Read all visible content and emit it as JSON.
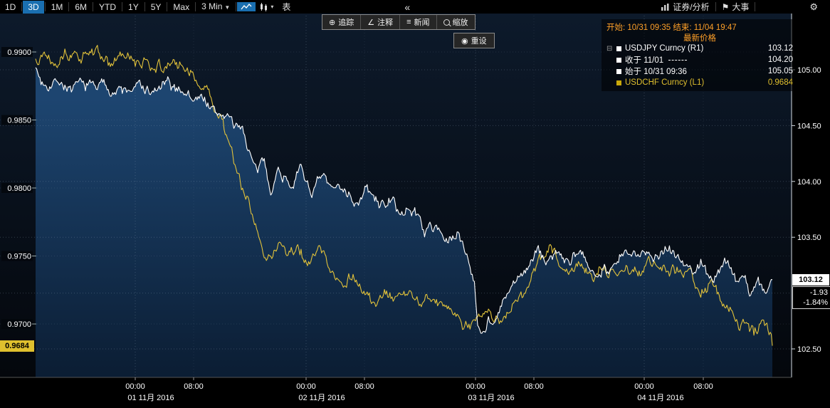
{
  "icons": {
    "chevron_down": "▼",
    "caret_small": "▾",
    "flag": "⚑",
    "gear": "⚙",
    "collapse": "«",
    "expander": "⊟",
    "crosshair": "⊕",
    "pencil": "∠",
    "news": "≡",
    "reset": "◉"
  },
  "toolbar": {
    "range_tabs": [
      "1D",
      "3D",
      "1M",
      "6M",
      "YTD",
      "1Y",
      "5Y",
      "Max"
    ],
    "active_tab": "3D",
    "interval_label": "3 Min",
    "table_label": "表",
    "collapse_label": "«",
    "securities_label": "证券/分析",
    "events_label": "大事"
  },
  "chart_tools": {
    "track": "追踪",
    "annotate": "注释",
    "news": "新闻",
    "zoom": "缩放",
    "reset": "重设"
  },
  "legend": {
    "range_text": "开始: 10/31 09:35 结束: 11/04 19:47",
    "price_header": "最新价格",
    "rows": [
      {
        "swatch": "#ffffff",
        "expander": true,
        "dash": false,
        "label": "USDJPY Curncy  (R1)",
        "value": "103.12",
        "color": "#ffffff"
      },
      {
        "swatch": "#ffffff",
        "expander": false,
        "dash": true,
        "label": "收于 11/01",
        "value": "104.20",
        "color": "#ffffff"
      },
      {
        "swatch": "#ffffff",
        "expander": false,
        "dash": false,
        "label": "始于 10/31 09:36",
        "value": "105.05",
        "color": "#ffffff"
      },
      {
        "swatch": "#c9a80a",
        "expander": false,
        "dash": false,
        "label": "USDCHF Curncy  (L1)",
        "value": "0.9684",
        "color": "#e0bf2e"
      }
    ]
  },
  "axes": {
    "left_ticks": [
      "0.9900",
      "0.9850",
      "0.9800",
      "0.9750",
      "0.9700"
    ],
    "left_badge": "0.9684",
    "right_ticks": [
      "105.00",
      "104.50",
      "104.00",
      "103.50",
      "102.50"
    ],
    "right_badge": "103.12",
    "change": "-1.93",
    "change_pct": "-1.84%",
    "time_ticks": [
      "00:00",
      "08:00",
      "00:00",
      "08:00",
      "00:00",
      "08:00",
      "00:00",
      "08:00"
    ],
    "dates": [
      "01 11月 2016",
      "02 11月 2016",
      "03 11月 2016",
      "04 11月 2016"
    ]
  },
  "chart_data": {
    "type": "line",
    "title": "",
    "x_range": [
      "10/31 09:35",
      "11/04 19:47"
    ],
    "left_axis": {
      "pair": "USDCHF",
      "grid": [
        0.99,
        0.985,
        0.98,
        0.975,
        0.97
      ],
      "last": 0.9684
    },
    "right_axis": {
      "pair": "USDJPY",
      "grid": [
        105.0,
        104.5,
        104.0,
        103.5,
        103.0,
        102.5
      ],
      "last": 103.12,
      "net_change": -1.93,
      "pct_change": -1.84
    },
    "series": [
      {
        "name": "USDJPY Curncy",
        "axis": "R1",
        "color": "#ffffff",
        "area": true,
        "keypoints": [
          [
            0,
            105.02
          ],
          [
            0.008,
            104.88
          ],
          [
            0.03,
            104.93
          ],
          [
            0.05,
            104.82
          ],
          [
            0.09,
            104.87
          ],
          [
            0.12,
            104.8
          ],
          [
            0.14,
            104.85
          ],
          [
            0.16,
            104.78
          ],
          [
            0.175,
            104.86
          ],
          [
            0.19,
            104.8
          ],
          [
            0.2,
            104.84
          ],
          [
            0.215,
            104.72
          ],
          [
            0.23,
            104.76
          ],
          [
            0.245,
            104.58
          ],
          [
            0.26,
            104.62
          ],
          [
            0.27,
            104.45
          ],
          [
            0.28,
            104.5
          ],
          [
            0.29,
            104.28
          ],
          [
            0.3,
            104.05
          ],
          [
            0.31,
            104.15
          ],
          [
            0.32,
            103.95
          ],
          [
            0.33,
            104.12
          ],
          [
            0.345,
            104.0
          ],
          [
            0.36,
            104.1
          ],
          [
            0.375,
            103.92
          ],
          [
            0.39,
            104.02
          ],
          [
            0.405,
            103.88
          ],
          [
            0.42,
            103.98
          ],
          [
            0.435,
            103.82
          ],
          [
            0.45,
            103.92
          ],
          [
            0.465,
            103.78
          ],
          [
            0.48,
            103.85
          ],
          [
            0.5,
            103.68
          ],
          [
            0.515,
            103.75
          ],
          [
            0.53,
            103.55
          ],
          [
            0.545,
            103.62
          ],
          [
            0.56,
            103.45
          ],
          [
            0.575,
            103.52
          ],
          [
            0.585,
            103.38
          ],
          [
            0.595,
            103.15
          ],
          [
            0.6,
            102.78
          ],
          [
            0.607,
            102.66
          ],
          [
            0.615,
            102.8
          ],
          [
            0.625,
            102.72
          ],
          [
            0.635,
            102.92
          ],
          [
            0.65,
            103.05
          ],
          [
            0.665,
            103.22
          ],
          [
            0.68,
            103.35
          ],
          [
            0.695,
            103.28
          ],
          [
            0.71,
            103.38
          ],
          [
            0.725,
            103.25
          ],
          [
            0.74,
            103.32
          ],
          [
            0.755,
            103.18
          ],
          [
            0.77,
            103.28
          ],
          [
            0.785,
            103.22
          ],
          [
            0.8,
            103.35
          ],
          [
            0.815,
            103.28
          ],
          [
            0.83,
            103.42
          ],
          [
            0.845,
            103.35
          ],
          [
            0.86,
            103.45
          ],
          [
            0.875,
            103.3
          ],
          [
            0.89,
            103.18
          ],
          [
            0.905,
            103.28
          ],
          [
            0.92,
            103.12
          ],
          [
            0.935,
            103.28
          ],
          [
            0.95,
            103.1
          ],
          [
            0.96,
            103.2
          ],
          [
            0.97,
            103.02
          ],
          [
            0.98,
            103.12
          ],
          [
            0.99,
            102.98
          ],
          [
            1,
            103.12
          ]
        ]
      },
      {
        "name": "USDCHF Curncy",
        "axis": "L1",
        "color": "#e2c23a",
        "area": false,
        "keypoints": [
          [
            0,
            0.9895
          ],
          [
            0.01,
            0.9902
          ],
          [
            0.025,
            0.9897
          ],
          [
            0.04,
            0.9904
          ],
          [
            0.06,
            0.9896
          ],
          [
            0.08,
            0.99
          ],
          [
            0.1,
            0.9891
          ],
          [
            0.12,
            0.9896
          ],
          [
            0.14,
            0.9889
          ],
          [
            0.16,
            0.9893
          ],
          [
            0.18,
            0.9887
          ],
          [
            0.2,
            0.989
          ],
          [
            0.215,
            0.9882
          ],
          [
            0.23,
            0.9874
          ],
          [
            0.24,
            0.986
          ],
          [
            0.25,
            0.9852
          ],
          [
            0.26,
            0.9838
          ],
          [
            0.27,
            0.982
          ],
          [
            0.28,
            0.98
          ],
          [
            0.29,
            0.9785
          ],
          [
            0.3,
            0.977
          ],
          [
            0.31,
            0.9758
          ],
          [
            0.32,
            0.975
          ],
          [
            0.33,
            0.976
          ],
          [
            0.34,
            0.9748
          ],
          [
            0.355,
            0.9756
          ],
          [
            0.37,
            0.9745
          ],
          [
            0.385,
            0.9752
          ],
          [
            0.4,
            0.974
          ],
          [
            0.415,
            0.973
          ],
          [
            0.43,
            0.9738
          ],
          [
            0.445,
            0.9722
          ],
          [
            0.46,
            0.9712
          ],
          [
            0.475,
            0.972
          ],
          [
            0.49,
            0.9714
          ],
          [
            0.505,
            0.9722
          ],
          [
            0.52,
            0.9716
          ],
          [
            0.535,
            0.9722
          ],
          [
            0.55,
            0.9714
          ],
          [
            0.565,
            0.9708
          ],
          [
            0.58,
            0.9698
          ],
          [
            0.59,
            0.9694
          ],
          [
            0.6,
            0.97
          ],
          [
            0.615,
            0.9708
          ],
          [
            0.63,
            0.9702
          ],
          [
            0.645,
            0.9712
          ],
          [
            0.66,
            0.9722
          ],
          [
            0.675,
            0.9735
          ],
          [
            0.69,
            0.9748
          ],
          [
            0.7,
            0.9756
          ],
          [
            0.71,
            0.9748
          ],
          [
            0.725,
            0.974
          ],
          [
            0.74,
            0.9746
          ],
          [
            0.755,
            0.9736
          ],
          [
            0.77,
            0.9742
          ],
          [
            0.785,
            0.9736
          ],
          [
            0.8,
            0.9742
          ],
          [
            0.815,
            0.9736
          ],
          [
            0.83,
            0.9744
          ],
          [
            0.845,
            0.9748
          ],
          [
            0.86,
            0.974
          ],
          [
            0.875,
            0.9744
          ],
          [
            0.89,
            0.9734
          ],
          [
            0.9,
            0.9726
          ],
          [
            0.915,
            0.9732
          ],
          [
            0.93,
            0.972
          ],
          [
            0.945,
            0.9708
          ],
          [
            0.955,
            0.9696
          ],
          [
            0.965,
            0.9703
          ],
          [
            0.975,
            0.9692
          ],
          [
            0.985,
            0.97
          ],
          [
            1,
            0.9684
          ]
        ]
      }
    ]
  }
}
